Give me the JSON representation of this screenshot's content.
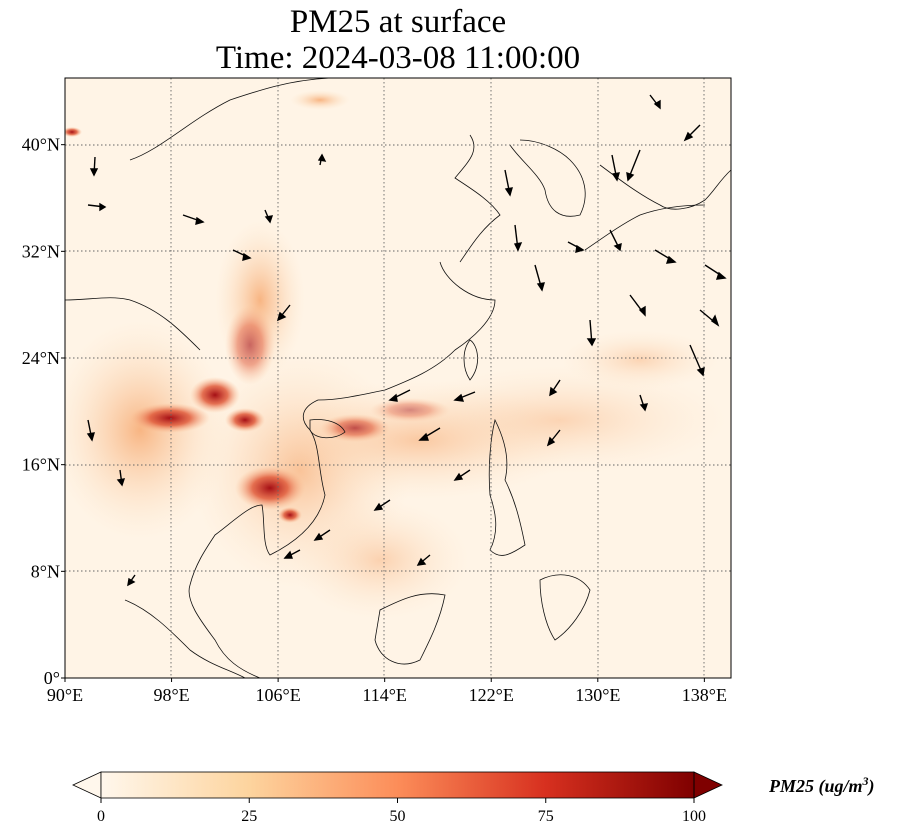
{
  "title": {
    "line1": "PM25 at surface",
    "line2": "Time: 2024-03-08 11:00:00"
  },
  "map": {
    "lon_ticks": [
      "90°E",
      "98°E",
      "106°E",
      "114°E",
      "122°E",
      "130°E",
      "138°E"
    ],
    "lat_ticks": [
      "0°",
      "8°N",
      "16°N",
      "24°N",
      "32°N",
      "40°N"
    ],
    "lon_values": [
      90,
      98,
      106,
      114,
      122,
      130,
      138
    ],
    "lat_values": [
      0,
      8,
      16,
      24,
      32,
      40
    ],
    "extent": {
      "lon_min": 90,
      "lon_max": 140,
      "lat_min": 0,
      "lat_max": 45
    },
    "gridlines": true
  },
  "colorbar": {
    "label": "PM25 (ug/m",
    "label_exp": "3",
    "label_close": ")",
    "ticks": [
      "0",
      "25",
      "50",
      "75",
      "100"
    ],
    "tick_values": [
      0,
      25,
      50,
      75,
      100
    ],
    "range": [
      0,
      100
    ],
    "extend": "both",
    "colormap": "OrRd"
  },
  "colors": {
    "background": "#fff5e8",
    "low": "#fdebd0",
    "mid": "#fdbb84",
    "high": "#d7301f",
    "max": "#7f0000"
  }
}
